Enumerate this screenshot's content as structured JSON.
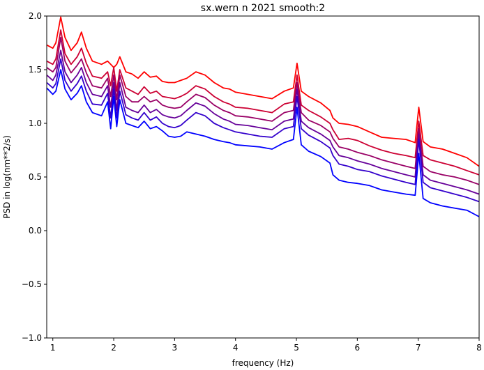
{
  "chart_data": {
    "type": "line",
    "title": "sx.wern n 2021 smooth:2",
    "xlabel": "frequency (Hz)",
    "ylabel": "PSD in log(nm**2/s)",
    "xlim": [
      0.9,
      8.0
    ],
    "ylim": [
      -1.0,
      2.0
    ],
    "xticks": [
      1,
      2,
      3,
      4,
      5,
      6,
      7,
      8
    ],
    "yticks": [
      -1.0,
      -0.5,
      0.0,
      0.5,
      1.0,
      1.5,
      2.0
    ],
    "xtick_labels": [
      "1",
      "2",
      "3",
      "4",
      "5",
      "6",
      "7",
      "8"
    ],
    "ytick_labels": [
      "−1.0",
      "−0.5",
      "0.0",
      "0.5",
      "1.0",
      "1.5",
      "2.0"
    ],
    "grid": false,
    "legend": "none",
    "series": [
      {
        "color": "#ff0000",
        "x": [
          0.9,
          1.0,
          1.05,
          1.13,
          1.2,
          1.3,
          1.4,
          1.47,
          1.55,
          1.65,
          1.8,
          1.9,
          1.95,
          2.0,
          2.05,
          2.1,
          2.2,
          2.3,
          2.4,
          2.5,
          2.6,
          2.7,
          2.8,
          2.9,
          3.0,
          3.1,
          3.2,
          3.35,
          3.5,
          3.65,
          3.8,
          3.9,
          4.0,
          4.2,
          4.4,
          4.6,
          4.8,
          4.95,
          5.01,
          5.08,
          5.2,
          5.4,
          5.55,
          5.6,
          5.7,
          5.85,
          6.0,
          6.2,
          6.4,
          6.6,
          6.8,
          6.95,
          7.01,
          7.08,
          7.2,
          7.4,
          7.6,
          7.8,
          8.0
        ],
        "values": [
          1.73,
          1.7,
          1.75,
          1.99,
          1.8,
          1.68,
          1.75,
          1.85,
          1.7,
          1.58,
          1.55,
          1.58,
          1.55,
          1.52,
          1.55,
          1.62,
          1.48,
          1.46,
          1.42,
          1.48,
          1.43,
          1.44,
          1.39,
          1.38,
          1.38,
          1.4,
          1.42,
          1.48,
          1.45,
          1.38,
          1.33,
          1.32,
          1.29,
          1.27,
          1.25,
          1.23,
          1.3,
          1.33,
          1.56,
          1.3,
          1.25,
          1.19,
          1.12,
          1.05,
          1.0,
          0.99,
          0.97,
          0.92,
          0.87,
          0.86,
          0.85,
          0.82,
          1.15,
          0.83,
          0.78,
          0.76,
          0.72,
          0.68,
          0.6
        ]
      },
      {
        "color": "#cc0033",
        "x": [
          0.9,
          1.0,
          1.05,
          1.13,
          1.2,
          1.3,
          1.4,
          1.47,
          1.55,
          1.65,
          1.8,
          1.9,
          1.95,
          2.0,
          2.05,
          2.1,
          2.2,
          2.3,
          2.4,
          2.5,
          2.6,
          2.7,
          2.8,
          2.9,
          3.0,
          3.1,
          3.2,
          3.35,
          3.5,
          3.65,
          3.8,
          3.9,
          4.0,
          4.2,
          4.4,
          4.6,
          4.8,
          4.95,
          5.01,
          5.08,
          5.2,
          5.4,
          5.55,
          5.6,
          5.7,
          5.85,
          6.0,
          6.2,
          6.4,
          6.6,
          6.8,
          6.95,
          7.01,
          7.08,
          7.2,
          7.4,
          7.6,
          7.8,
          8.0
        ],
        "values": [
          1.58,
          1.55,
          1.6,
          1.87,
          1.65,
          1.55,
          1.62,
          1.7,
          1.56,
          1.44,
          1.42,
          1.48,
          1.35,
          1.52,
          1.3,
          1.5,
          1.33,
          1.3,
          1.27,
          1.34,
          1.28,
          1.3,
          1.25,
          1.24,
          1.23,
          1.25,
          1.28,
          1.35,
          1.32,
          1.25,
          1.2,
          1.18,
          1.15,
          1.14,
          1.12,
          1.1,
          1.18,
          1.2,
          1.45,
          1.17,
          1.12,
          1.06,
          1.0,
          0.94,
          0.85,
          0.86,
          0.84,
          0.79,
          0.75,
          0.72,
          0.7,
          0.68,
          1.02,
          0.7,
          0.66,
          0.63,
          0.6,
          0.56,
          0.52
        ]
      },
      {
        "color": "#990066",
        "x": [
          0.9,
          1.0,
          1.05,
          1.13,
          1.2,
          1.3,
          1.4,
          1.47,
          1.55,
          1.65,
          1.8,
          1.9,
          1.95,
          2.0,
          2.05,
          2.1,
          2.2,
          2.3,
          2.4,
          2.5,
          2.6,
          2.7,
          2.8,
          2.9,
          3.0,
          3.1,
          3.2,
          3.35,
          3.5,
          3.65,
          3.8,
          3.9,
          4.0,
          4.2,
          4.4,
          4.6,
          4.8,
          4.95,
          5.01,
          5.08,
          5.2,
          5.4,
          5.55,
          5.6,
          5.7,
          5.85,
          6.0,
          6.2,
          6.4,
          6.6,
          6.8,
          6.95,
          7.01,
          7.08,
          7.2,
          7.4,
          7.6,
          7.8,
          8.0
        ],
        "values": [
          1.52,
          1.48,
          1.52,
          1.8,
          1.58,
          1.47,
          1.54,
          1.6,
          1.47,
          1.35,
          1.33,
          1.42,
          1.25,
          1.45,
          1.22,
          1.45,
          1.25,
          1.2,
          1.2,
          1.25,
          1.2,
          1.22,
          1.17,
          1.15,
          1.14,
          1.15,
          1.2,
          1.27,
          1.24,
          1.17,
          1.12,
          1.1,
          1.07,
          1.06,
          1.04,
          1.02,
          1.1,
          1.12,
          1.38,
          1.1,
          1.03,
          0.98,
          0.92,
          0.86,
          0.78,
          0.76,
          0.73,
          0.7,
          0.66,
          0.63,
          0.6,
          0.58,
          0.95,
          0.6,
          0.55,
          0.52,
          0.5,
          0.47,
          0.43
        ]
      },
      {
        "color": "#660099",
        "x": [
          0.9,
          1.0,
          1.05,
          1.13,
          1.2,
          1.3,
          1.4,
          1.47,
          1.55,
          1.65,
          1.8,
          1.9,
          1.95,
          2.0,
          2.05,
          2.1,
          2.2,
          2.3,
          2.4,
          2.5,
          2.6,
          2.7,
          2.8,
          2.9,
          3.0,
          3.1,
          3.2,
          3.35,
          3.5,
          3.65,
          3.8,
          3.9,
          4.0,
          4.2,
          4.4,
          4.6,
          4.8,
          4.95,
          5.01,
          5.08,
          5.2,
          5.4,
          5.55,
          5.6,
          5.7,
          5.85,
          6.0,
          6.2,
          6.4,
          6.6,
          6.8,
          6.95,
          7.01,
          7.08,
          7.2,
          7.4,
          7.6,
          7.8,
          8.0
        ],
        "values": [
          1.45,
          1.4,
          1.45,
          1.68,
          1.48,
          1.38,
          1.45,
          1.52,
          1.38,
          1.27,
          1.25,
          1.35,
          1.15,
          1.38,
          1.12,
          1.38,
          1.15,
          1.12,
          1.1,
          1.17,
          1.1,
          1.13,
          1.08,
          1.06,
          1.05,
          1.07,
          1.12,
          1.19,
          1.16,
          1.09,
          1.04,
          1.02,
          0.99,
          0.98,
          0.96,
          0.94,
          1.02,
          1.04,
          1.32,
          1.02,
          0.96,
          0.9,
          0.84,
          0.78,
          0.7,
          0.68,
          0.65,
          0.62,
          0.58,
          0.55,
          0.52,
          0.5,
          0.9,
          0.52,
          0.47,
          0.44,
          0.41,
          0.38,
          0.34
        ]
      },
      {
        "color": "#3300cc",
        "x": [
          0.9,
          1.0,
          1.05,
          1.13,
          1.2,
          1.3,
          1.4,
          1.47,
          1.55,
          1.65,
          1.8,
          1.9,
          1.95,
          2.0,
          2.05,
          2.1,
          2.2,
          2.3,
          2.4,
          2.5,
          2.6,
          2.7,
          2.8,
          2.9,
          3.0,
          3.1,
          3.2,
          3.35,
          3.5,
          3.65,
          3.8,
          3.9,
          4.0,
          4.2,
          4.4,
          4.6,
          4.8,
          4.95,
          5.01,
          5.08,
          5.2,
          5.4,
          5.55,
          5.6,
          5.7,
          5.85,
          6.0,
          6.2,
          6.4,
          6.6,
          6.8,
          6.95,
          7.01,
          7.08,
          7.2,
          7.4,
          7.6,
          7.8,
          8.0
        ],
        "values": [
          1.38,
          1.33,
          1.37,
          1.6,
          1.4,
          1.3,
          1.37,
          1.44,
          1.3,
          1.18,
          1.17,
          1.28,
          1.05,
          1.32,
          1.05,
          1.3,
          1.08,
          1.05,
          1.03,
          1.1,
          1.03,
          1.06,
          1.0,
          0.97,
          0.96,
          0.98,
          1.03,
          1.1,
          1.07,
          1.0,
          0.96,
          0.94,
          0.92,
          0.9,
          0.88,
          0.87,
          0.95,
          0.97,
          1.25,
          0.95,
          0.89,
          0.83,
          0.77,
          0.7,
          0.62,
          0.6,
          0.57,
          0.55,
          0.51,
          0.48,
          0.45,
          0.43,
          0.85,
          0.45,
          0.4,
          0.37,
          0.34,
          0.31,
          0.27
        ]
      },
      {
        "color": "#0000ff",
        "x": [
          0.9,
          1.0,
          1.05,
          1.13,
          1.2,
          1.3,
          1.4,
          1.47,
          1.55,
          1.65,
          1.8,
          1.9,
          1.95,
          2.0,
          2.05,
          2.1,
          2.2,
          2.3,
          2.4,
          2.5,
          2.6,
          2.7,
          2.8,
          2.9,
          3.0,
          3.1,
          3.2,
          3.35,
          3.5,
          3.65,
          3.8,
          3.9,
          4.0,
          4.2,
          4.4,
          4.6,
          4.8,
          4.95,
          5.01,
          5.08,
          5.2,
          5.4,
          5.55,
          5.6,
          5.7,
          5.85,
          6.0,
          6.2,
          6.4,
          6.6,
          6.8,
          6.95,
          7.01,
          7.08,
          7.2,
          7.4,
          7.6,
          7.8,
          8.0
        ],
        "values": [
          1.33,
          1.27,
          1.3,
          1.5,
          1.32,
          1.22,
          1.28,
          1.35,
          1.2,
          1.1,
          1.07,
          1.2,
          0.95,
          1.25,
          0.97,
          1.22,
          1.0,
          0.98,
          0.96,
          1.02,
          0.95,
          0.97,
          0.93,
          0.88,
          0.87,
          0.88,
          0.92,
          0.9,
          0.88,
          0.85,
          0.83,
          0.82,
          0.8,
          0.79,
          0.78,
          0.76,
          0.82,
          0.85,
          1.15,
          0.8,
          0.74,
          0.69,
          0.63,
          0.52,
          0.47,
          0.45,
          0.44,
          0.42,
          0.38,
          0.36,
          0.34,
          0.33,
          0.72,
          0.3,
          0.26,
          0.23,
          0.21,
          0.19,
          0.13
        ]
      }
    ]
  }
}
